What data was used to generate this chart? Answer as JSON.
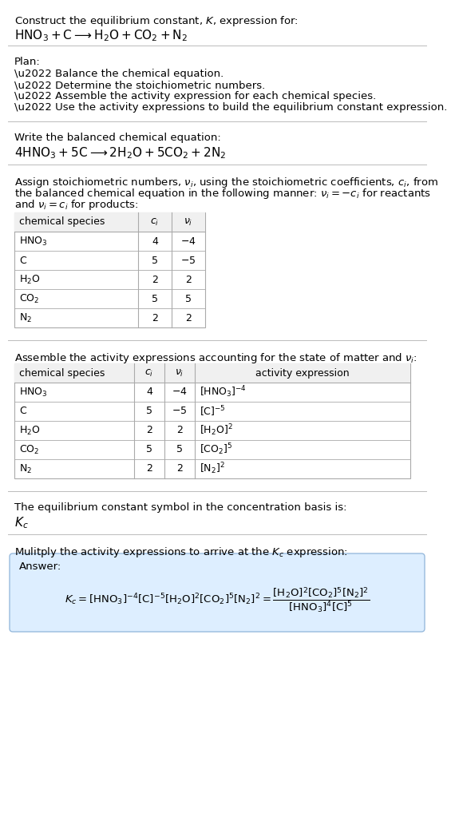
{
  "bg_color": "#ffffff",
  "section1_title": "Construct the equilibrium constant, $K$, expression for:",
  "section1_eq": "$\\mathrm{HNO_3 + C \\longrightarrow H_2O + CO_2 + N_2}$",
  "section2_title": "Plan:",
  "section2_bullets": [
    "\\u2022 Balance the chemical equation.",
    "\\u2022 Determine the stoichiometric numbers.",
    "\\u2022 Assemble the activity expression for each chemical species.",
    "\\u2022 Use the activity expressions to build the equilibrium constant expression."
  ],
  "section3_title": "Write the balanced chemical equation:",
  "section3_eq": "$4 \\mathrm{HNO_3} + 5 \\mathrm{C} \\longrightarrow 2 \\mathrm{H_2O} + 5 \\mathrm{CO_2} + 2 \\mathrm{N_2}$",
  "section4_intro_lines": [
    "Assign stoichiometric numbers, $\\nu_i$, using the stoichiometric coefficients, $c_i$, from",
    "the balanced chemical equation in the following manner: $\\nu_i = -c_i$ for reactants",
    "and $\\nu_i = c_i$ for products:"
  ],
  "table1_headers": [
    "chemical species",
    "$c_i$",
    "$\\nu_i$"
  ],
  "table1_rows": [
    [
      "$\\mathrm{HNO_3}$",
      "4",
      "$-4$"
    ],
    [
      "$\\mathrm{C}$",
      "5",
      "$-5$"
    ],
    [
      "$\\mathrm{H_2O}$",
      "2",
      "2"
    ],
    [
      "$\\mathrm{CO_2}$",
      "5",
      "5"
    ],
    [
      "$\\mathrm{N_2}$",
      "2",
      "2"
    ]
  ],
  "section5_intro": "Assemble the activity expressions accounting for the state of matter and $\\nu_i$:",
  "table2_headers": [
    "chemical species",
    "$c_i$",
    "$\\nu_i$",
    "activity expression"
  ],
  "table2_rows": [
    [
      "$\\mathrm{HNO_3}$",
      "4",
      "$-4$",
      "$[\\mathrm{HNO_3}]^{-4}$"
    ],
    [
      "$\\mathrm{C}$",
      "5",
      "$-5$",
      "$[\\mathrm{C}]^{-5}$"
    ],
    [
      "$\\mathrm{H_2O}$",
      "2",
      "2",
      "$[\\mathrm{H_2O}]^{2}$"
    ],
    [
      "$\\mathrm{CO_2}$",
      "5",
      "5",
      "$[\\mathrm{CO_2}]^{5}$"
    ],
    [
      "$\\mathrm{N_2}$",
      "2",
      "2",
      "$[\\mathrm{N_2}]^{2}$"
    ]
  ],
  "section6_text": "The equilibrium constant symbol in the concentration basis is:",
  "section6_symbol": "$K_c$",
  "section7_text": "Mulitply the activity expressions to arrive at the $K_c$ expression:",
  "answer_label": "Answer:",
  "answer_eq_line1": "$K_c = [\\mathrm{HNO_3}]^{-4} [\\mathrm{C}]^{-5} [\\mathrm{H_2O}]^{2} [\\mathrm{CO_2}]^{5} [\\mathrm{N_2}]^{2} = \\dfrac{[\\mathrm{H_2O}]^{2} [\\mathrm{CO_2}]^{5} [\\mathrm{N_2}]^{2}}{[\\mathrm{HNO_3}]^{4} [\\mathrm{C}]^{5}}$",
  "answer_box_color": "#ddeeff",
  "answer_box_border": "#99bbdd",
  "font_size": 9.5,
  "font_size_eq": 11,
  "font_size_table": 9,
  "line_color": "#bbbbbb"
}
